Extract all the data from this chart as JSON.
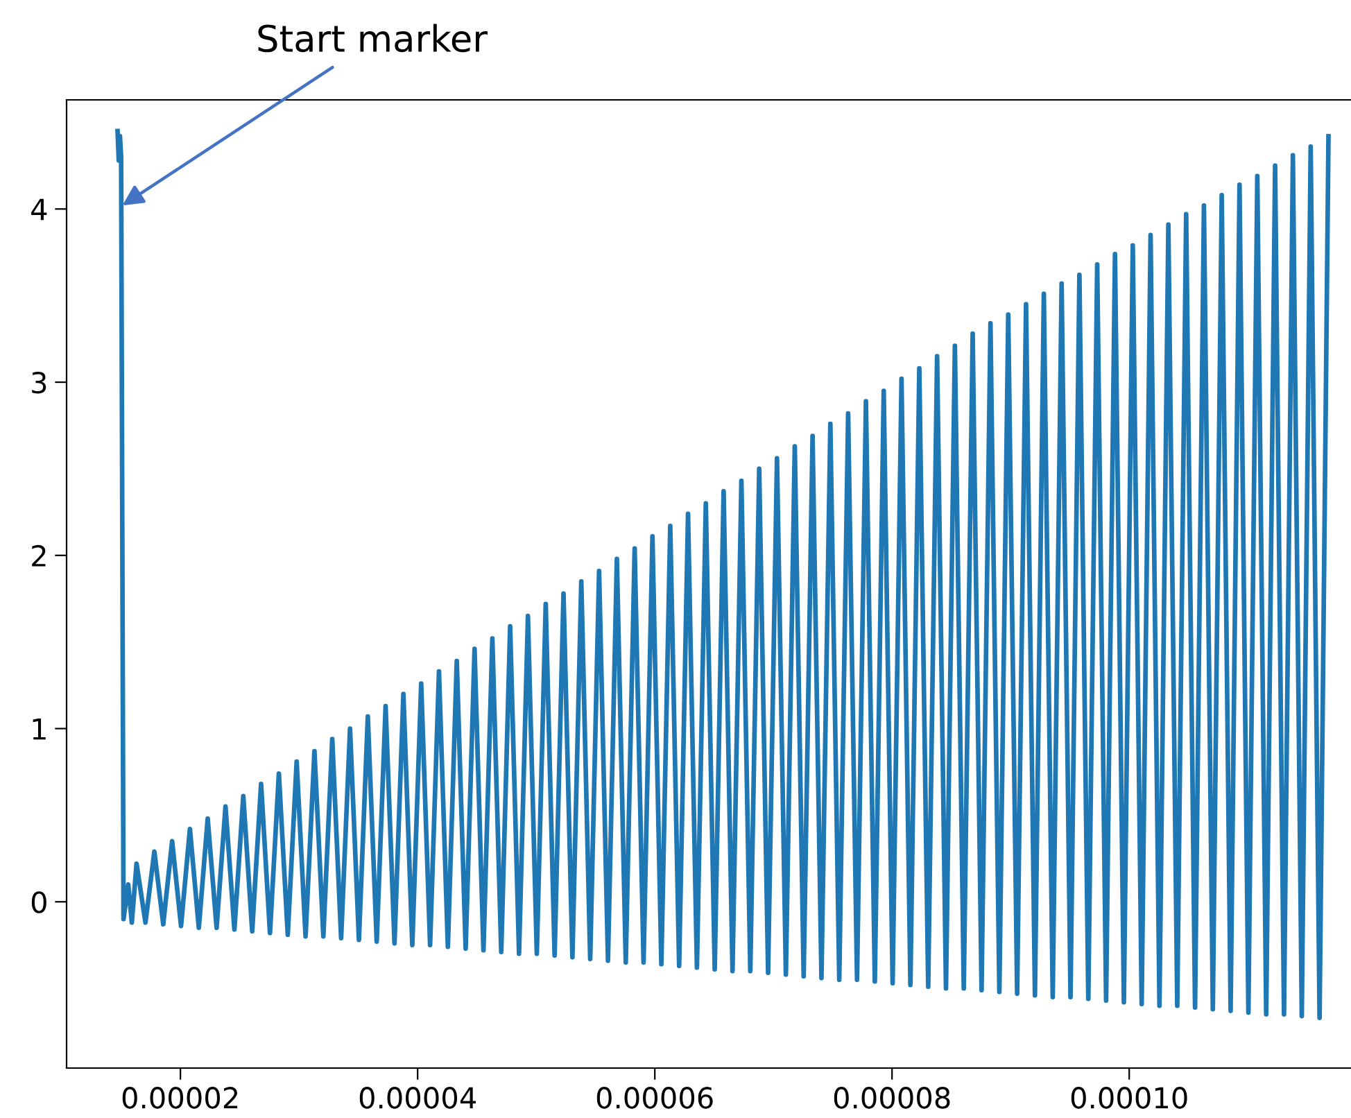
{
  "chart_data": {
    "type": "line",
    "annotations": [
      {
        "text": "Start marker",
        "x": 1.51e-05,
        "y": 4.02
      }
    ],
    "xlim": [
      1.04e-05,
      0.0001187
    ],
    "ylim": [
      -0.96,
      4.63
    ],
    "xticks": [
      {
        "value": 2e-05,
        "label": "0.00002"
      },
      {
        "value": 4e-05,
        "label": "0.00004"
      },
      {
        "value": 6e-05,
        "label": "0.00006"
      },
      {
        "value": 8e-05,
        "label": "0.00008"
      },
      {
        "value": 0.0001,
        "label": "0.00010"
      }
    ],
    "yticks": [
      0,
      1,
      2,
      3,
      4
    ],
    "grid": false,
    "marker": "none",
    "line_style": "solid",
    "series": [
      {
        "color": "#1f77b4",
        "x": [
          1.47e-05,
          1.48e-05,
          1.49e-05,
          1.5e-05,
          1.52e-05,
          1.56e-05,
          1.59e-05,
          1.63e-05,
          1.705e-05,
          1.78e-05,
          1.855e-05,
          1.93e-05,
          2.005e-05,
          2.08e-05,
          2.155e-05,
          2.23e-05,
          2.305e-05,
          2.38e-05,
          2.455e-05,
          2.53e-05,
          2.605e-05,
          2.68e-05,
          2.755e-05,
          2.83e-05,
          2.905e-05,
          2.98e-05,
          3.055e-05,
          3.13e-05,
          3.205e-05,
          3.28e-05,
          3.355e-05,
          3.43e-05,
          3.505e-05,
          3.58e-05,
          3.655e-05,
          3.73e-05,
          3.805e-05,
          3.88e-05,
          3.955e-05,
          4.03e-05,
          4.105e-05,
          4.18e-05,
          4.255e-05,
          4.33e-05,
          4.405e-05,
          4.48e-05,
          4.555e-05,
          4.63e-05,
          4.705e-05,
          4.78e-05,
          4.855e-05,
          4.93e-05,
          5.005e-05,
          5.08e-05,
          5.155e-05,
          5.23e-05,
          5.305e-05,
          5.38e-05,
          5.455e-05,
          5.53e-05,
          5.605e-05,
          5.68e-05,
          5.755e-05,
          5.83e-05,
          5.905e-05,
          5.98e-05,
          6.055e-05,
          6.13e-05,
          6.205e-05,
          6.28e-05,
          6.355e-05,
          6.43e-05,
          6.505e-05,
          6.58e-05,
          6.655e-05,
          6.73e-05,
          6.805e-05,
          6.88e-05,
          6.955e-05,
          7.03e-05,
          7.105e-05,
          7.18e-05,
          7.255e-05,
          7.33e-05,
          7.405e-05,
          7.48e-05,
          7.555e-05,
          7.63e-05,
          7.705e-05,
          7.78e-05,
          7.855e-05,
          7.93e-05,
          8.005e-05,
          8.08e-05,
          8.155e-05,
          8.23e-05,
          8.305e-05,
          8.38e-05,
          8.455e-05,
          8.53e-05,
          8.605e-05,
          8.68e-05,
          8.755e-05,
          8.83e-05,
          8.905e-05,
          8.98e-05,
          9.055e-05,
          9.13e-05,
          9.205e-05,
          9.28e-05,
          9.355e-05,
          9.43e-05,
          9.505e-05,
          9.58e-05,
          9.655e-05,
          9.73e-05,
          9.805e-05,
          9.88e-05,
          9.955e-05,
          0.0001003,
          0.00010105,
          0.0001018,
          0.00010255,
          0.0001033,
          0.00010405,
          0.0001048,
          0.00010555,
          0.0001063,
          0.00010705,
          0.0001078,
          0.00010855,
          0.0001093,
          0.00011005,
          0.0001108,
          0.00011155,
          0.0001123,
          0.00011305,
          0.0001138,
          0.00011455,
          0.0001153,
          0.00011605,
          0.0001168
        ],
        "values": [
          4.45,
          4.28,
          4.42,
          4.3,
          -0.1,
          0.1,
          -0.12,
          0.22,
          -0.12,
          0.29,
          -0.13,
          0.35,
          -0.14,
          0.42,
          -0.15,
          0.48,
          -0.15,
          0.55,
          -0.16,
          0.61,
          -0.17,
          0.68,
          -0.18,
          0.74,
          -0.19,
          0.81,
          -0.2,
          0.87,
          -0.2,
          0.94,
          -0.21,
          1.0,
          -0.22,
          1.07,
          -0.23,
          1.13,
          -0.24,
          1.2,
          -0.25,
          1.26,
          -0.25,
          1.33,
          -0.26,
          1.39,
          -0.27,
          1.46,
          -0.28,
          1.52,
          -0.29,
          1.59,
          -0.3,
          1.65,
          -0.3,
          1.72,
          -0.31,
          1.78,
          -0.32,
          1.85,
          -0.33,
          1.91,
          -0.34,
          1.98,
          -0.35,
          2.04,
          -0.35,
          2.11,
          -0.36,
          2.17,
          -0.37,
          2.24,
          -0.38,
          2.3,
          -0.39,
          2.37,
          -0.4,
          2.43,
          -0.4,
          2.5,
          -0.41,
          2.56,
          -0.42,
          2.63,
          -0.43,
          2.69,
          -0.44,
          2.76,
          -0.45,
          2.82,
          -0.45,
          2.89,
          -0.46,
          2.95,
          -0.47,
          3.02,
          -0.48,
          3.08,
          -0.49,
          3.15,
          -0.5,
          3.21,
          -0.5,
          3.28,
          -0.51,
          3.34,
          -0.52,
          3.39,
          -0.53,
          3.45,
          -0.54,
          3.51,
          -0.55,
          3.57,
          -0.55,
          3.62,
          -0.56,
          3.68,
          -0.57,
          3.74,
          -0.58,
          3.79,
          -0.59,
          3.85,
          -0.6,
          3.91,
          -0.6,
          3.97,
          -0.61,
          4.02,
          -0.62,
          4.08,
          -0.63,
          4.14,
          -0.64,
          4.19,
          -0.65,
          4.25,
          -0.65,
          4.31,
          -0.66,
          4.36,
          -0.67,
          4.42
        ]
      }
    ]
  }
}
